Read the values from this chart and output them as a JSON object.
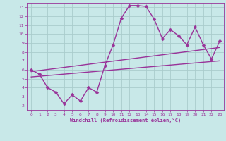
{
  "xlabel": "Windchill (Refroidissement éolien,°C)",
  "bg_color": "#c8e8e8",
  "line_color": "#993399",
  "grid_color": "#aacccc",
  "xlim": [
    -0.5,
    23.5
  ],
  "ylim": [
    1.5,
    13.5
  ],
  "xticks": [
    0,
    1,
    2,
    3,
    4,
    5,
    6,
    7,
    8,
    9,
    10,
    11,
    12,
    13,
    14,
    15,
    16,
    17,
    18,
    19,
    20,
    21,
    22,
    23
  ],
  "yticks": [
    2,
    3,
    4,
    5,
    6,
    7,
    8,
    9,
    10,
    11,
    12,
    13
  ],
  "main_line_x": [
    0,
    1,
    2,
    3,
    4,
    5,
    6,
    7,
    8,
    9,
    10,
    11,
    12,
    13,
    14,
    15,
    16,
    17,
    18,
    19,
    20,
    21,
    22,
    23
  ],
  "main_line_y": [
    6.0,
    5.5,
    4.0,
    3.5,
    2.2,
    3.2,
    2.5,
    4.0,
    3.5,
    6.5,
    8.8,
    11.8,
    13.2,
    13.2,
    13.1,
    11.7,
    9.5,
    10.5,
    9.8,
    8.8,
    10.8,
    8.8,
    7.2,
    9.2
  ],
  "reg_line1_x": [
    0,
    23
  ],
  "reg_line1_y": [
    5.8,
    8.5
  ],
  "reg_line2_x": [
    0,
    23
  ],
  "reg_line2_y": [
    5.2,
    7.0
  ],
  "marker_size": 2.5,
  "line_width": 1.0
}
